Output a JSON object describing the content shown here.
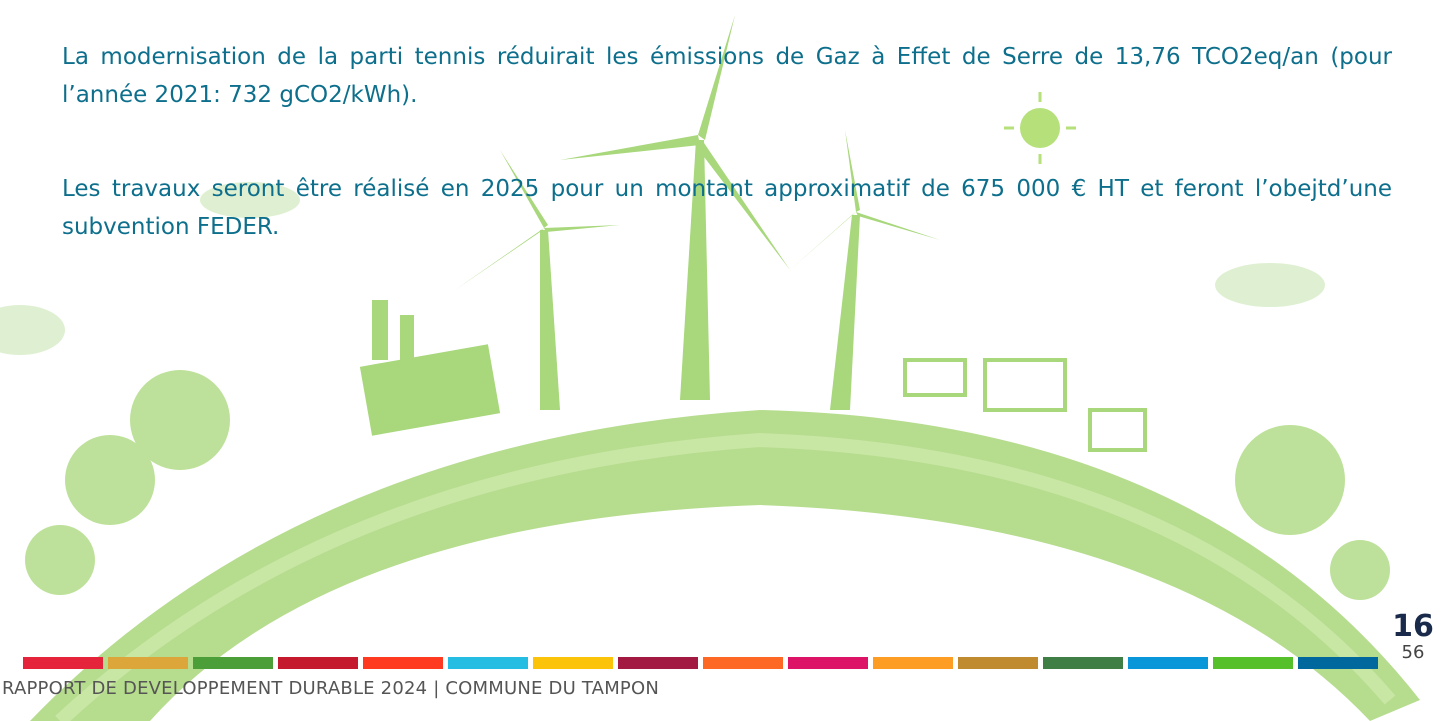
{
  "body": {
    "paragraphs": [
      "La modernisation de la parti tennis réduirait les émissions de Gaz à Effet de Serre de  13,76 TCO2eq/an (pour l’année 2021: 732 gCO2/kWh).",
      "Les travaux seront être réalisé en 2025 pour un montant approximatif de 675 000 € HT et feront l’obejtd’une subvention FEDER."
    ]
  },
  "footer": {
    "text": "RAPPORT DE DEVELOPPEMENT DURABLE 2024  | COMMUNE DU TAMPON",
    "page": "16",
    "total": "56"
  }
}
